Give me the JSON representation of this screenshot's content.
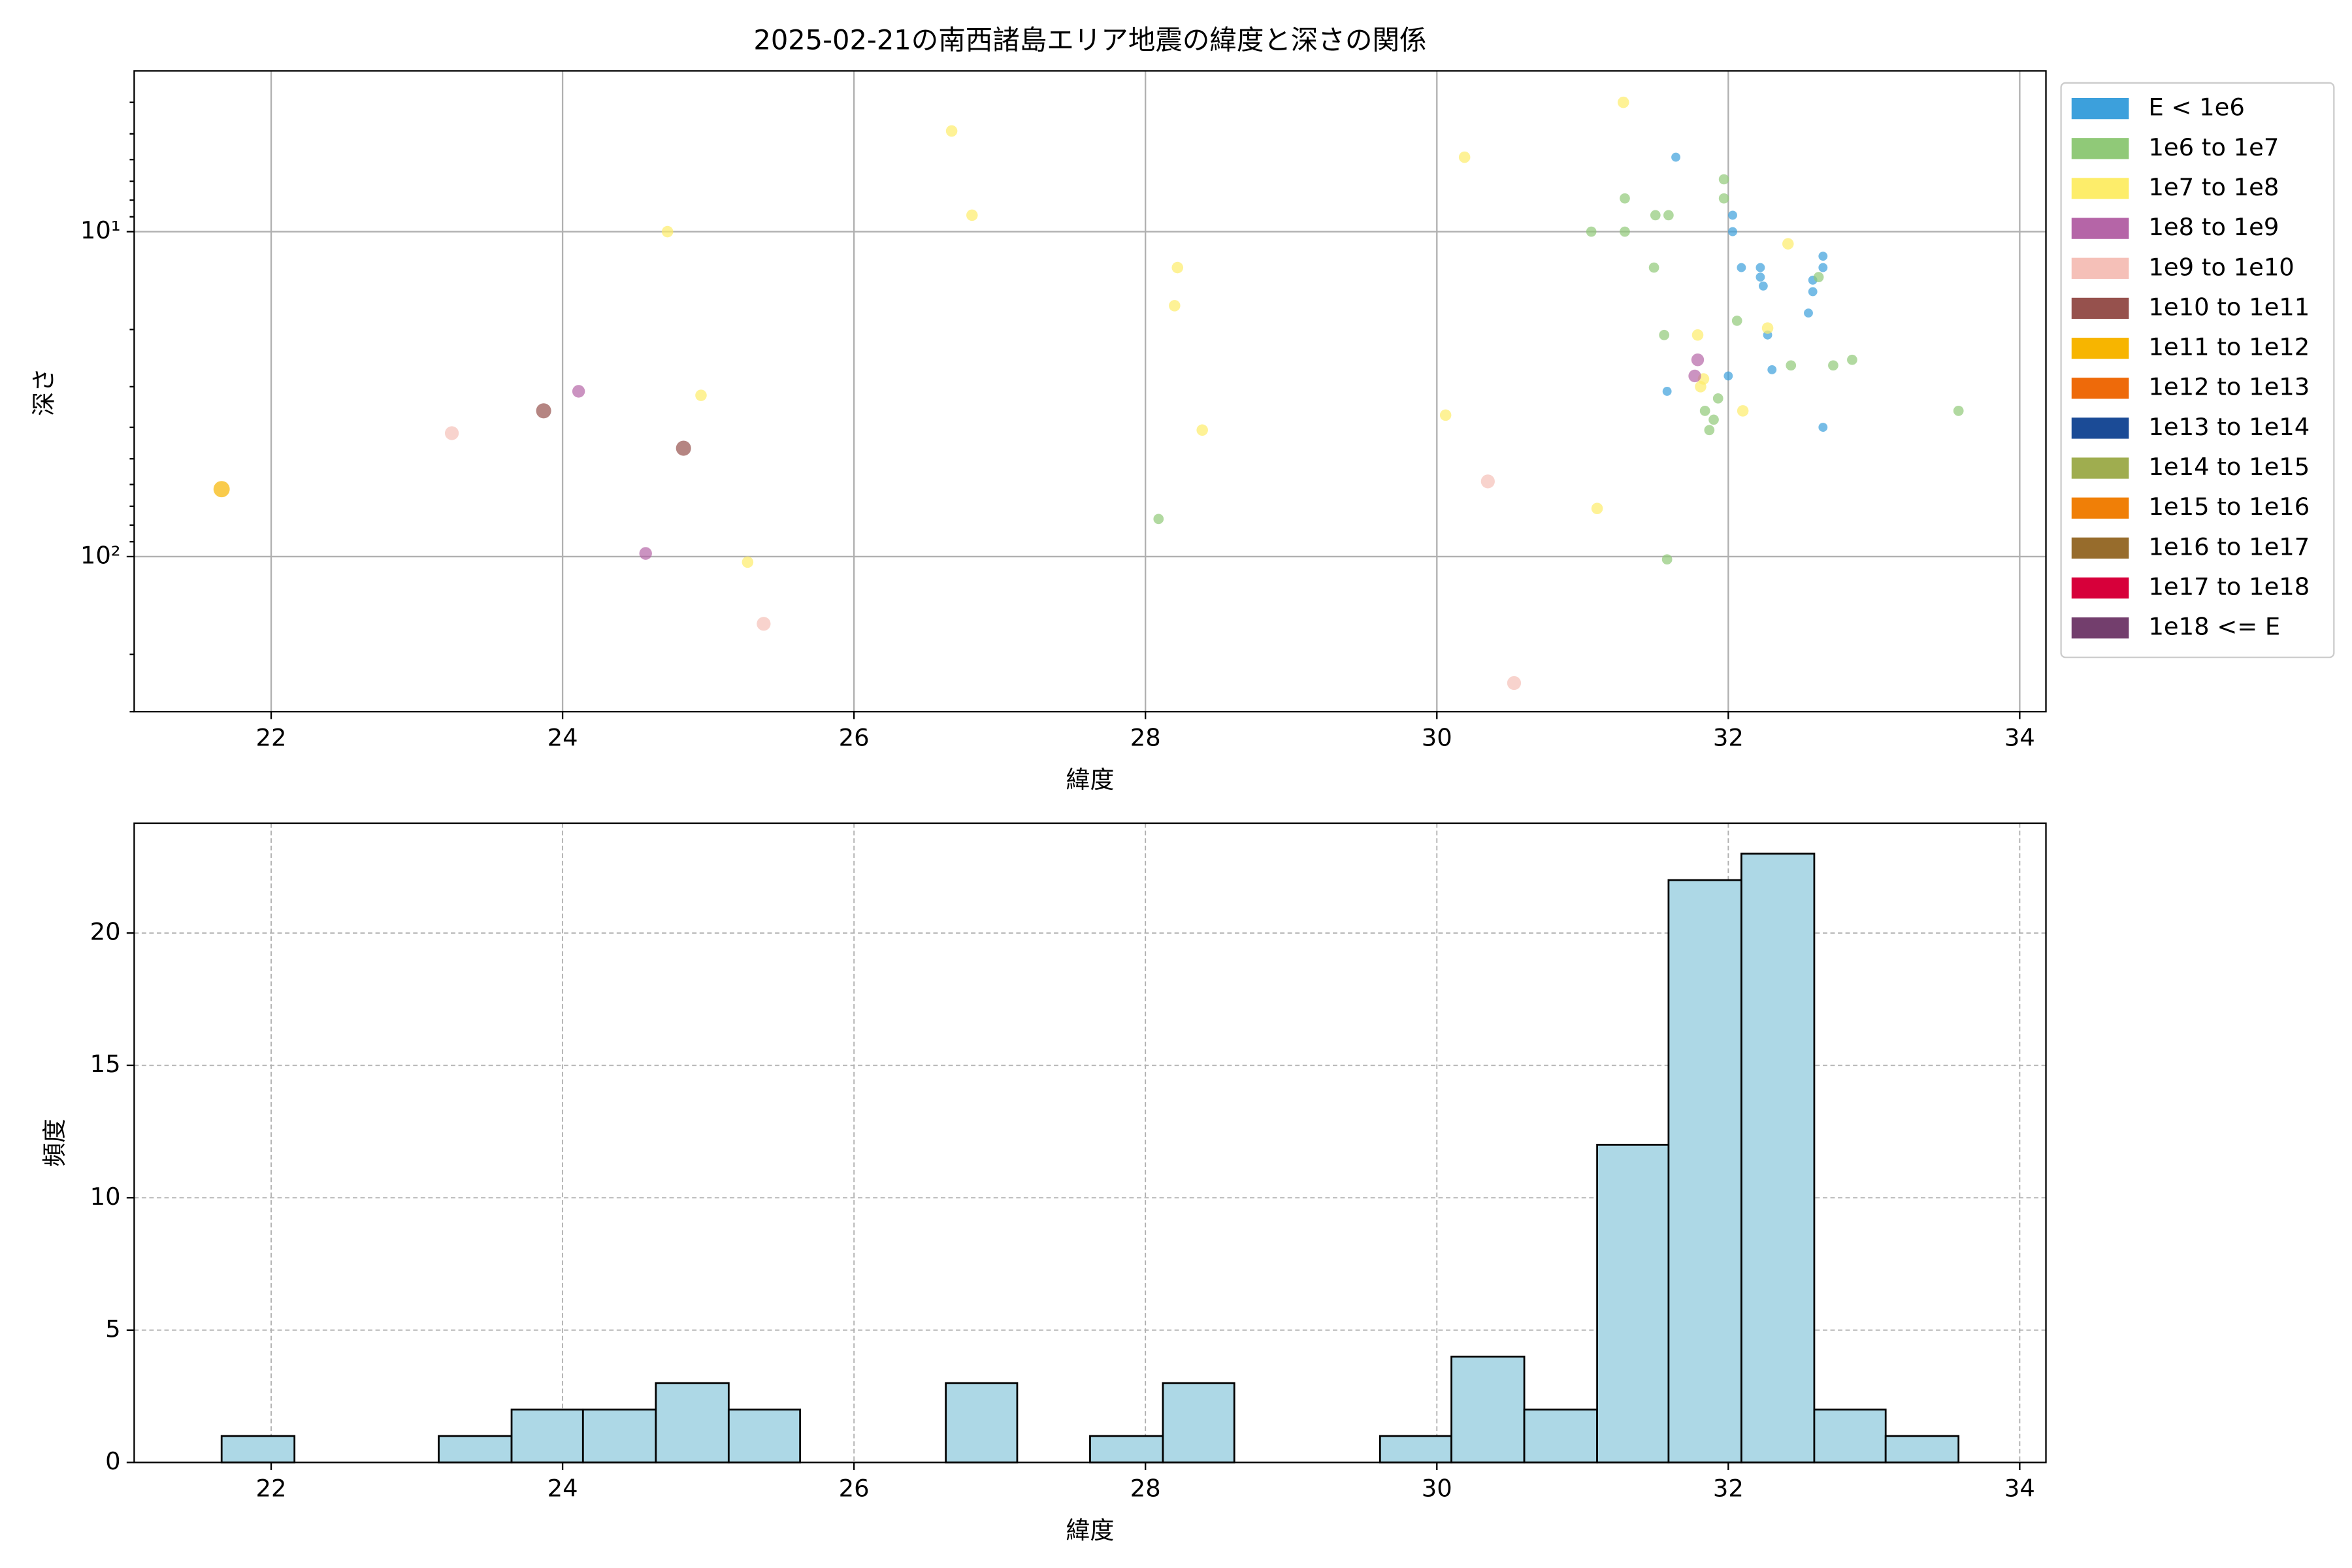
{
  "chart_data": [
    {
      "type": "scatter",
      "title": "2025-02-21の南西諸島エリア地震の緯度と深さの関係",
      "xlabel": "緯度",
      "ylabel": "深さ",
      "xlim": [
        21.06,
        34.18
      ],
      "xticks": [
        22,
        24,
        26,
        28,
        30,
        32,
        34
      ],
      "ylim": [
        3.2,
        300
      ],
      "yscale": "log",
      "y_inverted": true,
      "yticks": [
        {
          "value": 10,
          "label": "10¹"
        },
        {
          "value": 100,
          "label": "10²"
        }
      ],
      "yminorticks": [
        4,
        5,
        6,
        7,
        8,
        9,
        20,
        30,
        40,
        50,
        60,
        70,
        80,
        90,
        200,
        300
      ],
      "grid": true,
      "legend": "outside-right",
      "series": [
        {
          "name": "E < 1e6",
          "color": "#3ca0dc",
          "x": [
            31.64,
            32.03,
            32.03,
            32.09,
            32.22,
            32.22,
            32.24,
            32.27,
            32.65,
            32.65,
            32.58,
            32.58,
            32.55,
            32.0,
            32.3,
            31.58,
            32.65
          ],
          "values": [
            5.9,
            8.9,
            10,
            12.9,
            12.9,
            13.8,
            14.7,
            20.8,
            11.9,
            12.9,
            14.1,
            15.3,
            17.8,
            27.8,
            26.6,
            31.0,
            40.0
          ]
        },
        {
          "name": "1e6 to 1e7",
          "color": "#90c978",
          "x": [
            31.97,
            31.97,
            31.29,
            31.5,
            31.59,
            31.06,
            31.29,
            31.49,
            32.62,
            32.06,
            31.56,
            32.43,
            32.72,
            32.85,
            31.93,
            31.84,
            31.9,
            31.87,
            33.58,
            28.09,
            31.58
          ],
          "values": [
            6.9,
            7.9,
            7.9,
            8.9,
            8.9,
            10,
            10,
            12.9,
            13.8,
            18.8,
            20.8,
            25.8,
            25.8,
            24.8,
            32.6,
            35.6,
            37.9,
            40.8,
            35.6,
            76.6,
            102
          ]
        },
        {
          "name": "1e7 to 1e8",
          "color": "#fded6a",
          "x": [
            31.28,
            26.67,
            30.19,
            26.81,
            24.72,
            32.41,
            28.22,
            28.2,
            31.79,
            32.27,
            31.83,
            31.81,
            24.95,
            32.1,
            30.06,
            28.39,
            31.1,
            25.27
          ],
          "values": [
            4.0,
            4.9,
            5.9,
            8.9,
            10,
            10.9,
            12.9,
            16.9,
            20.8,
            19.8,
            28.4,
            30.0,
            31.9,
            35.6,
            36.7,
            40.8,
            71.1,
            104
          ]
        },
        {
          "name": "1e8 to 1e9",
          "color": "#b565a7",
          "x": [
            24.11,
            31.79,
            31.77,
            24.57
          ],
          "values": [
            31.0,
            24.8,
            27.8,
            97.8
          ]
        },
        {
          "name": "1e9 to 1e10",
          "color": "#f5c0b8",
          "x": [
            23.24,
            30.35,
            25.38,
            30.53
          ],
          "values": [
            41.7,
            58.7,
            161,
            245
          ]
        },
        {
          "name": "1e10 to 1e11",
          "color": "#96514d",
          "x": [
            23.87,
            24.83
          ],
          "values": [
            35.6,
            46.4
          ]
        },
        {
          "name": "1e11 to 1e12",
          "color": "#f7b500",
          "x": [
            21.66
          ],
          "values": [
            62
          ]
        },
        {
          "name": "1e12 to 1e13",
          "color": "#ee6a0a",
          "x": [],
          "values": []
        },
        {
          "name": "1e13 to 1e14",
          "color": "#1b4b96",
          "x": [],
          "values": []
        },
        {
          "name": "1e14 to 1e15",
          "color": "#9fad4f",
          "x": [],
          "values": []
        },
        {
          "name": "1e15 to 1e16",
          "color": "#f07f07",
          "x": [],
          "values": []
        },
        {
          "name": "1e16 to 1e17",
          "color": "#976c2c",
          "x": [],
          "values": []
        },
        {
          "name": "1e17 to 1e18",
          "color": "#d7003a",
          "x": [],
          "values": []
        },
        {
          "name": "1e18 <= E",
          "color": "#733e6d",
          "x": [],
          "values": []
        }
      ]
    },
    {
      "type": "histogram",
      "xlabel": "緯度",
      "ylabel": "頻度",
      "color": "#add8e6",
      "xlim": [
        21.06,
        34.18
      ],
      "xticks": [
        22,
        24,
        26,
        28,
        30,
        32,
        34
      ],
      "ylim": [
        0,
        24.15
      ],
      "yticks": [
        0,
        5,
        10,
        15,
        20
      ],
      "grid": true,
      "bins": [
        21.66,
        22.16,
        22.65,
        23.15,
        23.65,
        24.14,
        24.64,
        25.14,
        25.63,
        26.13,
        26.63,
        27.12,
        27.62,
        28.12,
        28.61,
        29.11,
        29.61,
        30.1,
        30.6,
        31.1,
        31.59,
        32.09,
        32.59,
        33.08,
        33.58
      ],
      "values": [
        1,
        0,
        0,
        1,
        2,
        2,
        3,
        2,
        0,
        0,
        3,
        0,
        1,
        3,
        0,
        0,
        1,
        4,
        2,
        12,
        22,
        23,
        2,
        1
      ]
    }
  ]
}
